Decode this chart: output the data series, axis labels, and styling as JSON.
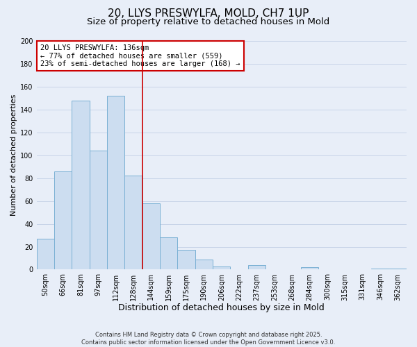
{
  "title1": "20, LLYS PRESWYLFA, MOLD, CH7 1UP",
  "title2": "Size of property relative to detached houses in Mold",
  "xlabel": "Distribution of detached houses by size in Mold",
  "ylabel": "Number of detached properties",
  "categories": [
    "50sqm",
    "66sqm",
    "81sqm",
    "97sqm",
    "112sqm",
    "128sqm",
    "144sqm",
    "159sqm",
    "175sqm",
    "190sqm",
    "206sqm",
    "222sqm",
    "237sqm",
    "253sqm",
    "268sqm",
    "284sqm",
    "300sqm",
    "315sqm",
    "331sqm",
    "346sqm",
    "362sqm"
  ],
  "values": [
    27,
    86,
    148,
    104,
    152,
    82,
    58,
    28,
    17,
    9,
    3,
    0,
    4,
    0,
    0,
    2,
    0,
    0,
    0,
    1,
    1
  ],
  "bar_color": "#ccddf0",
  "bar_edge_color": "#7ab0d4",
  "vline_x_index": 5.5,
  "vline_color": "#cc0000",
  "annotation_line1": "20 LLYS PRESWYLFA: 136sqm",
  "annotation_line2": "← 77% of detached houses are smaller (559)",
  "annotation_line3": "23% of semi-detached houses are larger (168) →",
  "annotation_box_color": "#ffffff",
  "annotation_box_edge": "#cc0000",
  "ylim": [
    0,
    200
  ],
  "yticks": [
    0,
    20,
    40,
    60,
    80,
    100,
    120,
    140,
    160,
    180,
    200
  ],
  "background_color": "#e8eef8",
  "grid_color": "#c8d4e8",
  "footer_line1": "Contains HM Land Registry data © Crown copyright and database right 2025.",
  "footer_line2": "Contains public sector information licensed under the Open Government Licence v3.0.",
  "title1_fontsize": 11,
  "title2_fontsize": 9.5,
  "xlabel_fontsize": 9,
  "ylabel_fontsize": 8,
  "tick_fontsize": 7,
  "annotation_fontsize": 7.5,
  "footer_fontsize": 6
}
